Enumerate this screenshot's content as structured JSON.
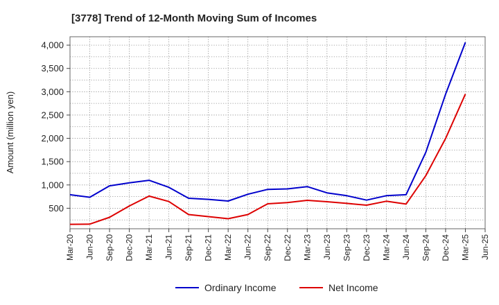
{
  "chart_data": {
    "type": "line",
    "title": "[3778]  Trend of 12-Month Moving Sum of Incomes",
    "xlabel": "",
    "ylabel": "Amount (million yen)",
    "categories": [
      "Mar-20",
      "Jun-20",
      "Sep-20",
      "Dec-20",
      "Mar-21",
      "Jun-21",
      "Sep-21",
      "Dec-21",
      "Mar-22",
      "Jun-22",
      "Sep-22",
      "Dec-22",
      "Mar-23",
      "Jun-23",
      "Sep-23",
      "Dec-23",
      "Mar-24",
      "Jun-24",
      "Sep-24",
      "Dec-24",
      "Mar-25",
      "Jun-25"
    ],
    "y_ticks": [
      500,
      1000,
      1500,
      2000,
      2500,
      3000,
      3500,
      4000
    ],
    "y_tick_labels": [
      "500",
      "1,000",
      "1,500",
      "2,000",
      "2,500",
      "3,000",
      "3,500",
      "4,000"
    ],
    "ylim": [
      60,
      4180
    ],
    "grid": true,
    "legend_position": "bottom-center",
    "series": [
      {
        "name": "Ordinary Income",
        "color": "#0000cc",
        "values": [
          790,
          735,
          980,
          1045,
          1100,
          950,
          715,
          690,
          655,
          800,
          905,
          915,
          965,
          830,
          770,
          675,
          770,
          790,
          1700,
          2950,
          4060,
          null
        ]
      },
      {
        "name": "Net Income",
        "color": "#dd0000",
        "values": [
          155,
          160,
          305,
          550,
          760,
          645,
          365,
          320,
          275,
          365,
          595,
          620,
          670,
          640,
          605,
          565,
          650,
          590,
          1200,
          2000,
          2950,
          null
        ]
      }
    ]
  }
}
